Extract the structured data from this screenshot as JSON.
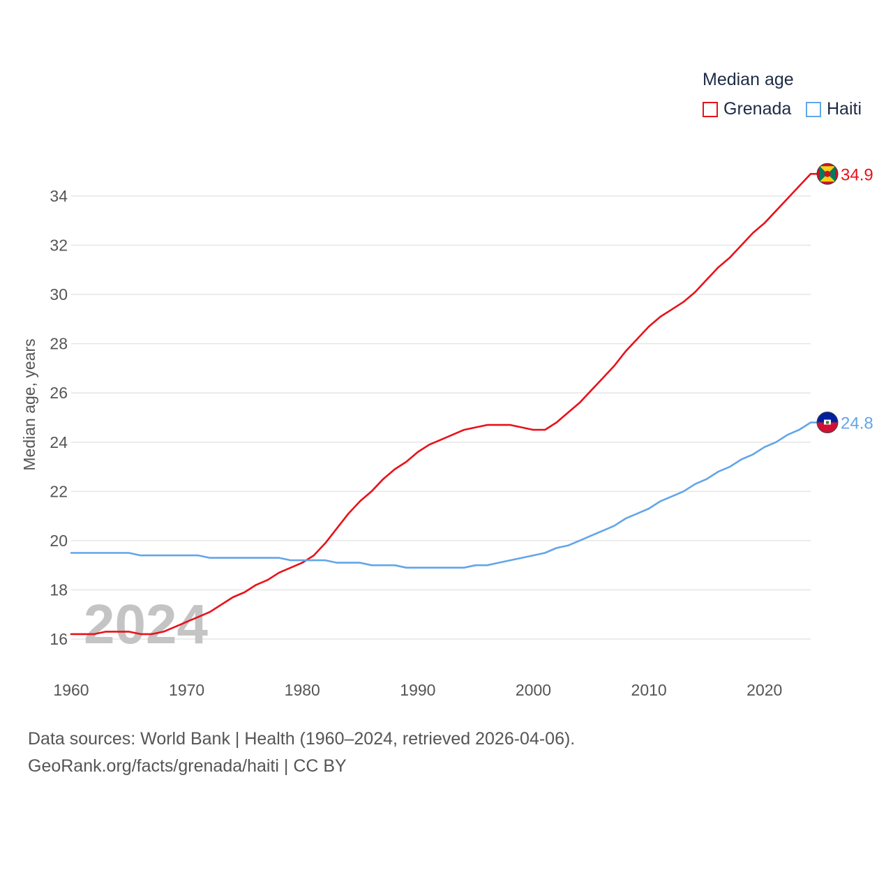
{
  "legend": {
    "title": "Median age",
    "items": [
      {
        "name": "Grenada",
        "color": "#e8111a"
      },
      {
        "name": "Haiti",
        "color": "#62a6e8"
      }
    ]
  },
  "year_overlay": "2024",
  "source": {
    "line1": "Data sources: World Bank | Health (1960–2024, retrieved 2026-04-06).",
    "line2": "GeoRank.org/facts/grenada/haiti | CC BY"
  },
  "flags": {
    "grenada": {
      "icon": "grenada-flag-icon",
      "colors": [
        "#ce1126",
        "#fcd116",
        "#007a5e"
      ]
    },
    "haiti": {
      "icon": "haiti-flag-icon",
      "colors": [
        "#00209f",
        "#d21034"
      ]
    }
  },
  "chart_data": {
    "type": "line",
    "title": "Median age",
    "xlabel": "",
    "ylabel": "Median age, years",
    "xlim": [
      1960,
      2024
    ],
    "ylim": [
      15,
      35
    ],
    "x_ticks": [
      1960,
      1970,
      1980,
      1990,
      2000,
      2010,
      2020
    ],
    "y_ticks": [
      16,
      18,
      20,
      22,
      24,
      26,
      28,
      30,
      32,
      34
    ],
    "grid": true,
    "legend_position": "top-right",
    "x": [
      1960,
      1961,
      1962,
      1963,
      1964,
      1965,
      1966,
      1967,
      1968,
      1969,
      1970,
      1971,
      1972,
      1973,
      1974,
      1975,
      1976,
      1977,
      1978,
      1979,
      1980,
      1981,
      1982,
      1983,
      1984,
      1985,
      1986,
      1987,
      1988,
      1989,
      1990,
      1991,
      1992,
      1993,
      1994,
      1995,
      1996,
      1997,
      1998,
      1999,
      2000,
      2001,
      2002,
      2003,
      2004,
      2005,
      2006,
      2007,
      2008,
      2009,
      2010,
      2011,
      2012,
      2013,
      2014,
      2015,
      2016,
      2017,
      2018,
      2019,
      2020,
      2021,
      2022,
      2023,
      2024
    ],
    "series": [
      {
        "name": "Grenada",
        "color": "#e8111a",
        "end_label": "34.9",
        "values": [
          16.2,
          16.2,
          16.2,
          16.3,
          16.3,
          16.3,
          16.2,
          16.2,
          16.3,
          16.5,
          16.7,
          16.9,
          17.1,
          17.4,
          17.7,
          17.9,
          18.2,
          18.4,
          18.7,
          18.9,
          19.1,
          19.4,
          19.9,
          20.5,
          21.1,
          21.6,
          22.0,
          22.5,
          22.9,
          23.2,
          23.6,
          23.9,
          24.1,
          24.3,
          24.5,
          24.6,
          24.7,
          24.7,
          24.7,
          24.6,
          24.5,
          24.5,
          24.8,
          25.2,
          25.6,
          26.1,
          26.6,
          27.1,
          27.7,
          28.2,
          28.7,
          29.1,
          29.4,
          29.7,
          30.1,
          30.6,
          31.1,
          31.5,
          32.0,
          32.5,
          32.9,
          33.4,
          33.9,
          34.4,
          34.9
        ]
      },
      {
        "name": "Haiti",
        "color": "#62a6e8",
        "end_label": "24.8",
        "values": [
          19.5,
          19.5,
          19.5,
          19.5,
          19.5,
          19.5,
          19.4,
          19.4,
          19.4,
          19.4,
          19.4,
          19.4,
          19.3,
          19.3,
          19.3,
          19.3,
          19.3,
          19.3,
          19.3,
          19.2,
          19.2,
          19.2,
          19.2,
          19.1,
          19.1,
          19.1,
          19.0,
          19.0,
          19.0,
          18.9,
          18.9,
          18.9,
          18.9,
          18.9,
          18.9,
          19.0,
          19.0,
          19.1,
          19.2,
          19.3,
          19.4,
          19.5,
          19.7,
          19.8,
          20.0,
          20.2,
          20.4,
          20.6,
          20.9,
          21.1,
          21.3,
          21.6,
          21.8,
          22.0,
          22.3,
          22.5,
          22.8,
          23.0,
          23.3,
          23.5,
          23.8,
          24.0,
          24.3,
          24.5,
          24.8
        ]
      }
    ]
  }
}
